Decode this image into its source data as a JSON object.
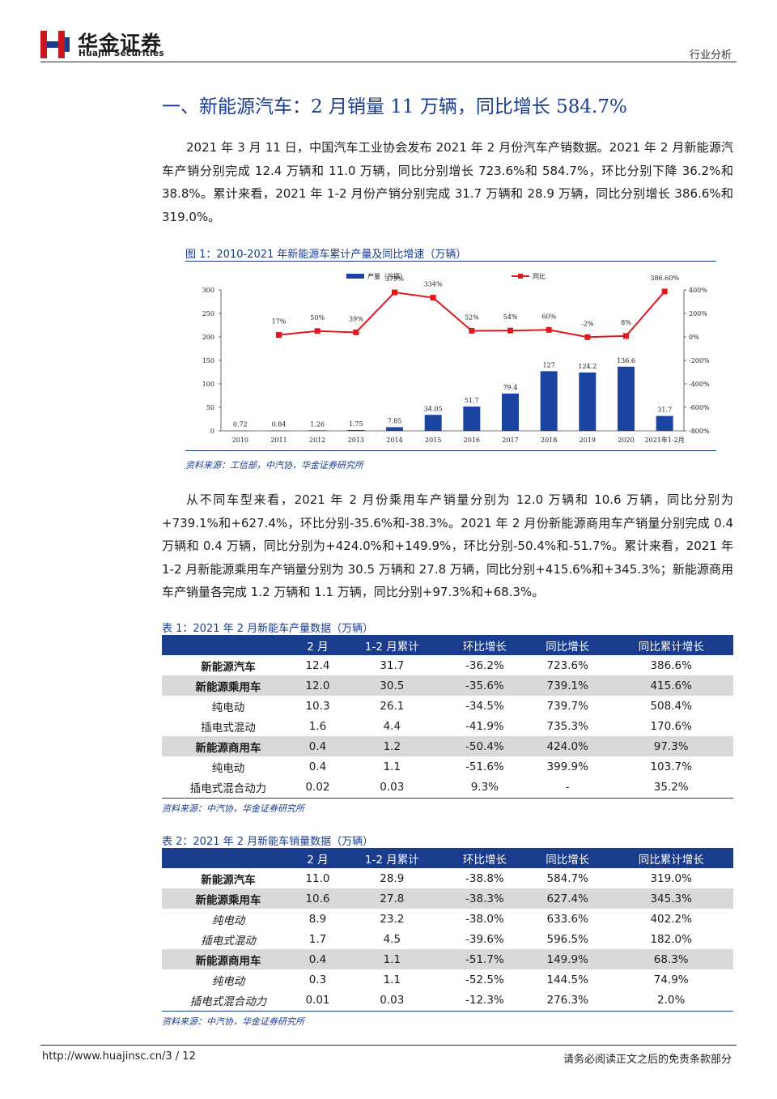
{
  "header": {
    "logo_cn": "华金证券",
    "logo_en": "Huajin Securities",
    "category": "行业分析"
  },
  "section_title": "一、新能源汽车：2 月销量 11 万辆，同比增长 584.7%",
  "paragraph1": "2021 年 3 月 11 日，中国汽车工业协会发布 2021 年 2 月份汽车产销数据。2021 年 2 月新能源汽车产销分别完成 12.4 万辆和 11.0 万辆，同比分别增长 723.6%和 584.7%，环比分别下降 36.2%和 38.8%。累计来看，2021 年 1-2 月份产销分别完成 31.7 万辆和 28.9 万辆，同比分别增长 386.6%和 319.0%。",
  "figure1": {
    "caption": "图 1：2010-2021 年新能源车累计产量及同比增速（万辆）",
    "source": "资料来源：工信部，中汽协，华金证券研究所"
  },
  "chart_data": {
    "type": "bar",
    "categories": [
      "2010",
      "2011",
      "2012",
      "2013",
      "2014",
      "2015",
      "2016",
      "2017",
      "2018",
      "2019",
      "2020",
      "2021年1-2月"
    ],
    "series": [
      {
        "name": "产量（万辆）",
        "type": "bar",
        "axis": "left",
        "color": "#1a44a0",
        "values": [
          0.72,
          0.84,
          1.26,
          1.75,
          7.85,
          34.05,
          51.7,
          79.4,
          127,
          124.2,
          136.6,
          31.7
        ],
        "labels": [
          "0.72",
          "0.84",
          "1.26",
          "1.75",
          "7.85",
          "34.05",
          "51.7",
          "79.4",
          "127",
          "124.2",
          "136.6",
          "31.7"
        ]
      },
      {
        "name": "同比",
        "type": "line",
        "axis": "right",
        "color": "#e0171c",
        "values": [
          null,
          17,
          50,
          39,
          379,
          334,
          52,
          54,
          60,
          -2,
          8,
          386.6
        ],
        "labels": [
          "",
          "17%",
          "50%",
          "39%",
          "379%",
          "334%",
          "52%",
          "54%",
          "60%",
          "-2%",
          "8%",
          "386.60%"
        ]
      }
    ],
    "y_left": {
      "min": 0,
      "max": 300,
      "ticks": [
        "0",
        "50",
        "100",
        "150",
        "200",
        "250",
        "300"
      ]
    },
    "y_right": {
      "min": -800,
      "max": 400,
      "ticks": [
        "-800%",
        "-600%",
        "-400%",
        "-200%",
        "0%",
        "200%",
        "400%"
      ]
    },
    "legend_position": "top",
    "grid": false
  },
  "paragraph2": "从不同车型来看，2021 年 2 月份乘用车产销量分别为 12.0 万辆和 10.6 万辆，同比分别为+739.1%和+627.4%，环比分别-35.6%和-38.3%。2021 年 2 月份新能源商用车产销量分别完成 0.4 万辆和 0.4 万辆，同比分别为+424.0%和+149.9%，环比分别-50.4%和-51.7%。累计来看，2021 年 1-2 月新能源乘用车产销量分别为 30.5 万辆和 27.8 万辆，同比分别+415.6%和+345.3%；新能源商用车产销量各完成 1.2 万辆和 1.1 万辆，同比分别+97.3%和+68.3%。",
  "table1": {
    "caption": "表 1：2021 年 2 月新能车产量数据（万辆）",
    "headers": [
      "",
      "2 月",
      "1-2 月累计",
      "环比增长",
      "同比增长",
      "同比累计增长"
    ],
    "rows": [
      {
        "cells": [
          "新能源汽车",
          "12.4",
          "31.7",
          "-36.2%",
          "723.6%",
          "386.6%"
        ],
        "shade": false,
        "style": "bold"
      },
      {
        "cells": [
          "新能源乘用车",
          "12.0",
          "30.5",
          "-35.6%",
          "739.1%",
          "415.6%"
        ],
        "shade": true,
        "style": "bold"
      },
      {
        "cells": [
          "纯电动",
          "10.3",
          "26.1",
          "-34.5%",
          "739.7%",
          "508.4%"
        ],
        "shade": false,
        "style": ""
      },
      {
        "cells": [
          "插电式混动",
          "1.6",
          "4.4",
          "-41.9%",
          "735.3%",
          "170.6%"
        ],
        "shade": false,
        "style": ""
      },
      {
        "cells": [
          "新能源商用车",
          "0.4",
          "1.2",
          "-50.4%",
          "424.0%",
          "97.3%"
        ],
        "shade": true,
        "style": "bold"
      },
      {
        "cells": [
          "纯电动",
          "0.4",
          "1.1",
          "-51.6%",
          "399.9%",
          "103.7%"
        ],
        "shade": false,
        "style": ""
      },
      {
        "cells": [
          "插电式混合动力",
          "0.02",
          "0.03",
          "9.3%",
          "-",
          "35.2%"
        ],
        "shade": false,
        "style": ""
      }
    ],
    "source": "资料来源：中汽协，华金证券研究所"
  },
  "table2": {
    "caption": "表 2：2021 年 2 月新能车销量数据（万辆）",
    "headers": [
      "",
      "2 月",
      "1-2 月累计",
      "环比增长",
      "同比增长",
      "同比累计增长"
    ],
    "rows": [
      {
        "cells": [
          "新能源汽车",
          "11.0",
          "28.9",
          "-38.8%",
          "584.7%",
          "319.0%"
        ],
        "shade": false,
        "style": "bold"
      },
      {
        "cells": [
          "新能源乘用车",
          "10.6",
          "27.8",
          "-38.3%",
          "627.4%",
          "345.3%"
        ],
        "shade": true,
        "style": "bold"
      },
      {
        "cells": [
          "纯电动",
          "8.9",
          "23.2",
          "-38.0%",
          "633.6%",
          "402.2%"
        ],
        "shade": false,
        "style": "italic"
      },
      {
        "cells": [
          "插电式混动",
          "1.7",
          "4.5",
          "-39.6%",
          "596.5%",
          "182.0%"
        ],
        "shade": false,
        "style": "italic"
      },
      {
        "cells": [
          "新能源商用车",
          "0.4",
          "1.1",
          "-51.7%",
          "149.9%",
          "68.3%"
        ],
        "shade": true,
        "style": "bold"
      },
      {
        "cells": [
          "纯电动",
          "0.3",
          "1.1",
          "-52.5%",
          "144.5%",
          "74.9%"
        ],
        "shade": false,
        "style": "italic"
      },
      {
        "cells": [
          "插电式混合动力",
          "0.01",
          "0.03",
          "-12.3%",
          "276.3%",
          "2.0%"
        ],
        "shade": false,
        "style": "italic"
      }
    ],
    "source": "资料来源：中汽协，华金证券研究所"
  },
  "footer": {
    "url_page": "http://www.huajinsc.cn/3 / 12",
    "disclaimer": "请务必阅读正文之后的免责条款部分"
  },
  "colors": {
    "accent": "#1a3c8c",
    "bar": "#1a44a0",
    "line": "#e0171c",
    "shade": "#d9d9d9"
  }
}
